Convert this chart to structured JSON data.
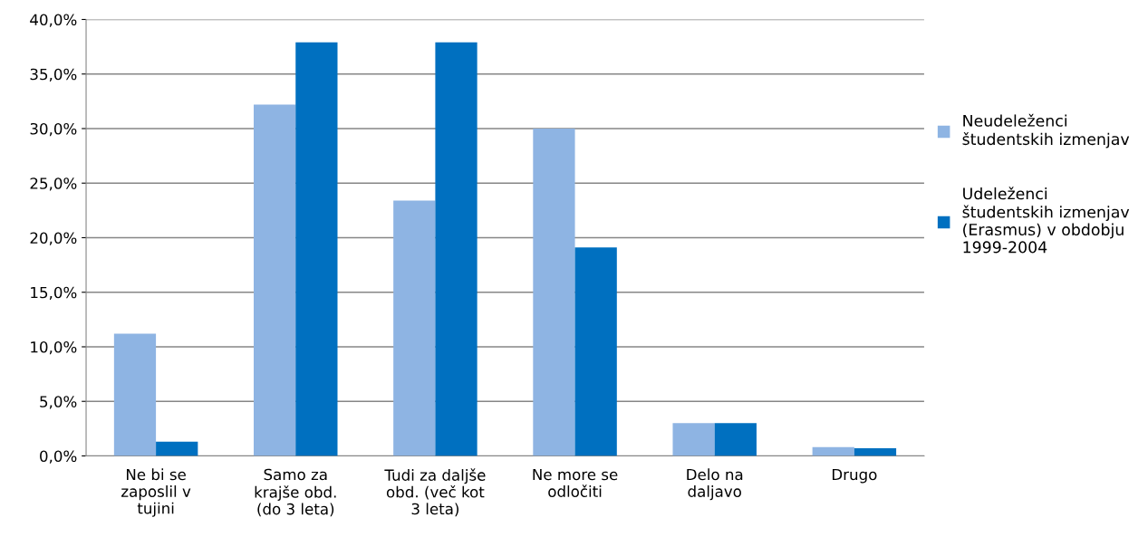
{
  "chart_data": {
    "type": "bar",
    "categories": [
      "Ne bi se\nzaposlil v\ntujini",
      "Samo za\nkrajše obd.\n(do 3 leta)",
      "Tudi za daljše\nobd. (več kot\n3 leta)",
      "Ne more se\nodločiti",
      "Delo na\ndaljavo",
      "Drugo"
    ],
    "series": [
      {
        "name": "Neudeleženci\nštudentskih izmenjav",
        "color": "#8eb4e3",
        "values": [
          11.2,
          32.2,
          23.4,
          30.0,
          3.0,
          0.8
        ]
      },
      {
        "name": "Udeleženci\nštudentskih izmenjav\n(Erasmus) v obdobju\n1999-2004",
        "color": "#0070c0",
        "values": [
          1.3,
          37.9,
          37.9,
          19.1,
          3.0,
          0.7
        ]
      }
    ],
    "ylim": [
      0,
      40
    ],
    "yticks": [
      {
        "value": 0,
        "label": "0,0%"
      },
      {
        "value": 5,
        "label": "5,0%"
      },
      {
        "value": 10,
        "label": "10,0%"
      },
      {
        "value": 15,
        "label": "15,0%"
      },
      {
        "value": 20,
        "label": "20,0%"
      },
      {
        "value": 25,
        "label": "25,0%"
      },
      {
        "value": 30,
        "label": "30,0%"
      },
      {
        "value": 35,
        "label": "35,0%"
      },
      {
        "value": 40,
        "label": "40,0%"
      }
    ],
    "grid": "y",
    "legend": "right"
  }
}
